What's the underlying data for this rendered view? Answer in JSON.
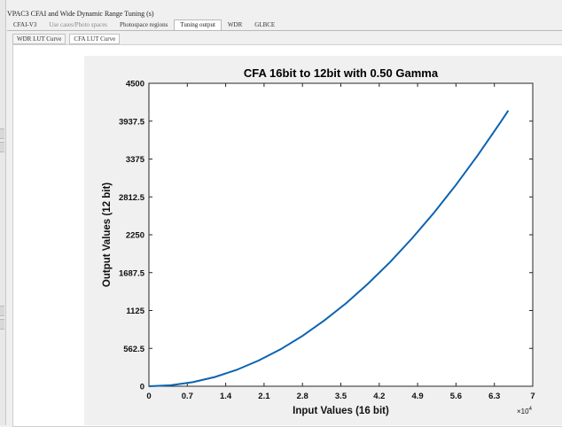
{
  "window": {
    "title": "VPAC3 CFAI and Wide Dynamic Range Tuning (s)"
  },
  "tabs": [
    {
      "label": "CFAI-V3",
      "state": "strong"
    },
    {
      "label": "Use cases/Photo spaces",
      "state": "normal"
    },
    {
      "label": "Photospace regions",
      "state": "strong"
    },
    {
      "label": "Tuning output",
      "state": "active"
    },
    {
      "label": "WDR",
      "state": "strong"
    },
    {
      "label": "GLBCE",
      "state": "strong"
    }
  ],
  "subtabs": [
    {
      "label": "WDR LUT Curve",
      "active": false
    },
    {
      "label": "CFA LUT Curve",
      "active": true
    }
  ],
  "colors": {
    "curve": "#0b63b0"
  },
  "chart_data": {
    "type": "line",
    "title": "CFA 16bit to 12bit with 0.50 Gamma",
    "xlabel": "Input Values (16 bit)",
    "ylabel": "Output Values (12 bit)",
    "x_exponent": "×10",
    "x_exponent_power": "4",
    "xlim": [
      0,
      70000
    ],
    "ylim": [
      0,
      4500
    ],
    "x_ticks": [
      0,
      7000,
      14000,
      21000,
      28000,
      35000,
      42000,
      49000,
      56000,
      63000,
      70000
    ],
    "x_tick_labels": [
      "0",
      "0.7",
      "1.4",
      "2.1",
      "2.8",
      "3.5",
      "4.2",
      "4.9",
      "5.6",
      "6.3",
      "7"
    ],
    "y_ticks": [
      0,
      562.5,
      1125,
      1687.5,
      2250,
      2812.5,
      3375,
      3937.5,
      4500
    ],
    "y_tick_labels": [
      "0",
      "562.5",
      "1125",
      "1687.5",
      "2250",
      "2812.5",
      "3375",
      "3937.5",
      "4500"
    ],
    "grid": false,
    "series": [
      {
        "x": [
          0,
          4000,
          8000,
          12000,
          16000,
          20000,
          24000,
          28000,
          32000,
          36000,
          40000,
          44000,
          48000,
          52000,
          56000,
          60000,
          64000,
          65535
        ],
        "values": [
          0,
          15,
          61,
          137,
          244,
          381,
          549,
          748,
          977,
          1236,
          1526,
          1846,
          2197,
          2579,
          2991,
          3433,
          3906,
          4095
        ]
      }
    ]
  }
}
